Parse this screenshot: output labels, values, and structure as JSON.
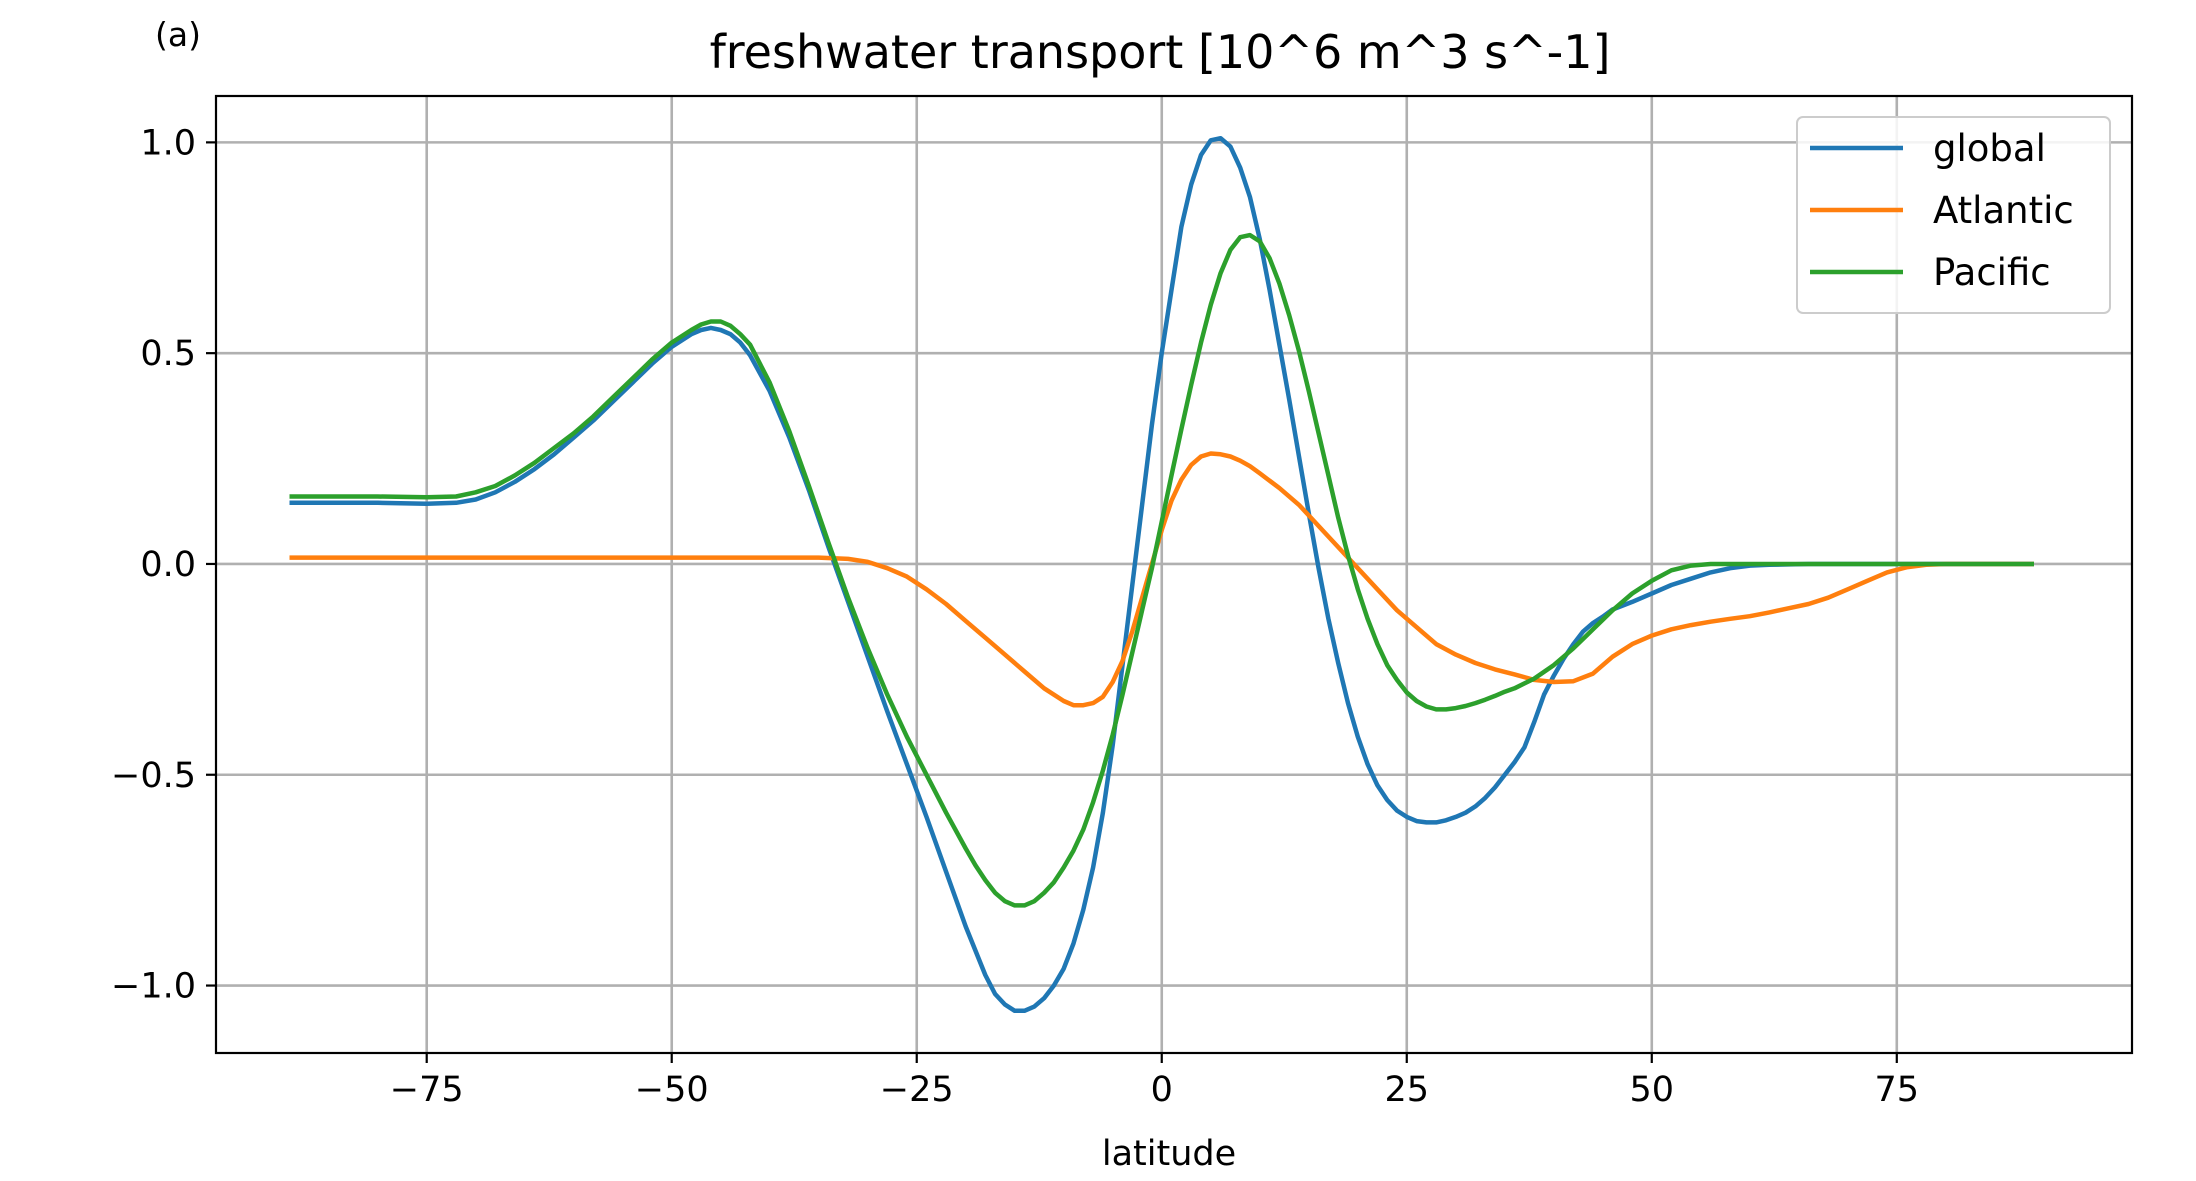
{
  "chart_data": {
    "type": "line",
    "panel_label": "(a)",
    "title": "freshwater transport [10^6 m^3 s^-1]",
    "xlabel": "latitude",
    "ylabel": "",
    "xlim": [
      -96.5,
      99
    ],
    "ylim": [
      -1.16,
      1.11
    ],
    "xticks": [
      -75,
      -50,
      -25,
      0,
      25,
      50,
      75
    ],
    "xtick_labels": [
      "−75",
      "−50",
      "−25",
      "0",
      "25",
      "50",
      "75"
    ],
    "yticks": [
      -1.0,
      -0.5,
      0.0,
      0.5,
      1.0
    ],
    "ytick_labels": [
      "−1.0",
      "−0.5",
      "0.0",
      "0.5",
      "1.0"
    ],
    "grid": true,
    "legend_position": "top-right",
    "series": [
      {
        "name": "global",
        "color": "#1f77b4",
        "x": [
          -89,
          -85,
          -80,
          -75,
          -72,
          -70,
          -68,
          -66,
          -64,
          -62,
          -60,
          -58,
          -56,
          -54,
          -52,
          -50,
          -48,
          -47,
          -46,
          -45,
          -44,
          -43,
          -42,
          -40,
          -38,
          -36,
          -34,
          -32,
          -30,
          -28,
          -26,
          -24,
          -22,
          -20,
          -18,
          -17,
          -16,
          -15,
          -14,
          -13,
          -12,
          -11,
          -10,
          -9,
          -8,
          -7,
          -6,
          -5,
          -4,
          -3,
          -2,
          -1,
          0,
          1,
          2,
          3,
          4,
          5,
          6,
          7,
          8,
          9,
          10,
          11,
          12,
          13,
          14,
          15,
          16,
          17,
          18,
          19,
          20,
          21,
          22,
          23,
          24,
          25,
          26,
          27,
          28,
          29,
          30,
          31,
          32,
          33,
          34,
          35,
          36,
          37,
          38,
          39,
          40,
          41,
          42,
          43,
          44,
          45,
          46,
          48,
          50,
          52,
          54,
          56,
          58,
          60,
          62,
          64,
          66,
          68,
          70,
          72,
          74,
          76,
          78,
          80,
          85,
          89
        ],
        "y": [
          0.145,
          0.145,
          0.145,
          0.143,
          0.145,
          0.153,
          0.17,
          0.195,
          0.225,
          0.26,
          0.3,
          0.34,
          0.385,
          0.43,
          0.475,
          0.515,
          0.545,
          0.555,
          0.56,
          0.555,
          0.545,
          0.525,
          0.495,
          0.41,
          0.3,
          0.175,
          0.04,
          -0.09,
          -0.22,
          -0.35,
          -0.475,
          -0.6,
          -0.73,
          -0.86,
          -0.975,
          -1.02,
          -1.045,
          -1.06,
          -1.06,
          -1.05,
          -1.03,
          -1.0,
          -0.96,
          -0.9,
          -0.82,
          -0.72,
          -0.59,
          -0.43,
          -0.24,
          -0.05,
          0.14,
          0.33,
          0.5,
          0.65,
          0.8,
          0.9,
          0.97,
          1.005,
          1.01,
          0.99,
          0.94,
          0.87,
          0.77,
          0.65,
          0.52,
          0.39,
          0.255,
          0.12,
          -0.01,
          -0.13,
          -0.235,
          -0.33,
          -0.41,
          -0.475,
          -0.525,
          -0.56,
          -0.585,
          -0.6,
          -0.61,
          -0.613,
          -0.613,
          -0.608,
          -0.6,
          -0.59,
          -0.575,
          -0.555,
          -0.53,
          -0.5,
          -0.47,
          -0.435,
          -0.375,
          -0.31,
          -0.265,
          -0.225,
          -0.19,
          -0.16,
          -0.14,
          -0.125,
          -0.108,
          -0.09,
          -0.07,
          -0.05,
          -0.035,
          -0.02,
          -0.01,
          -0.004,
          -0.002,
          -0.001,
          0.0,
          0.0,
          0.0,
          0.0,
          0.0,
          0.0,
          0.0,
          0.0,
          0.0,
          0.0
        ]
      },
      {
        "name": "Atlantic",
        "color": "#ff7f0e",
        "x": [
          -89,
          -80,
          -70,
          -60,
          -50,
          -40,
          -35,
          -32,
          -30,
          -28,
          -26,
          -24,
          -22,
          -20,
          -18,
          -16,
          -14,
          -12,
          -10,
          -9,
          -8,
          -7,
          -6,
          -5,
          -4,
          -3,
          -2,
          -1,
          0,
          1,
          2,
          3,
          4,
          5,
          6,
          7,
          8,
          9,
          10,
          12,
          14,
          16,
          18,
          20,
          22,
          24,
          26,
          28,
          30,
          32,
          34,
          36,
          38,
          40,
          42,
          44,
          46,
          48,
          50,
          52,
          54,
          56,
          58,
          60,
          62,
          64,
          66,
          68,
          70,
          72,
          74,
          76,
          78,
          80,
          85,
          89
        ],
        "y": [
          0.015,
          0.015,
          0.015,
          0.015,
          0.015,
          0.015,
          0.015,
          0.012,
          0.005,
          -0.01,
          -0.03,
          -0.06,
          -0.095,
          -0.135,
          -0.175,
          -0.215,
          -0.255,
          -0.295,
          -0.325,
          -0.335,
          -0.335,
          -0.33,
          -0.315,
          -0.28,
          -0.23,
          -0.16,
          -0.08,
          0.0,
          0.08,
          0.15,
          0.2,
          0.235,
          0.255,
          0.262,
          0.26,
          0.255,
          0.245,
          0.232,
          0.215,
          0.18,
          0.14,
          0.09,
          0.04,
          -0.01,
          -0.06,
          -0.11,
          -0.15,
          -0.19,
          -0.215,
          -0.235,
          -0.25,
          -0.262,
          -0.275,
          -0.28,
          -0.278,
          -0.26,
          -0.22,
          -0.19,
          -0.17,
          -0.155,
          -0.145,
          -0.137,
          -0.13,
          -0.124,
          -0.115,
          -0.105,
          -0.095,
          -0.08,
          -0.06,
          -0.04,
          -0.02,
          -0.008,
          -0.002,
          0.0,
          0.0,
          0.0
        ]
      },
      {
        "name": "Pacific",
        "color": "#2ca02c",
        "x": [
          -89,
          -85,
          -80,
          -75,
          -72,
          -70,
          -68,
          -66,
          -64,
          -62,
          -60,
          -58,
          -56,
          -54,
          -52,
          -50,
          -48,
          -47,
          -46,
          -45,
          -44,
          -43,
          -42,
          -40,
          -38,
          -36,
          -34,
          -32,
          -30,
          -28,
          -26,
          -24,
          -22,
          -20,
          -19,
          -18,
          -17,
          -16,
          -15,
          -14,
          -13,
          -12,
          -11,
          -10,
          -9,
          -8,
          -7,
          -6,
          -5,
          -4,
          -3,
          -2,
          -1,
          0,
          1,
          2,
          3,
          4,
          5,
          6,
          7,
          8,
          9,
          10,
          11,
          12,
          13,
          14,
          15,
          16,
          17,
          18,
          19,
          20,
          21,
          22,
          23,
          24,
          25,
          26,
          27,
          28,
          29,
          30,
          31,
          32,
          33,
          34,
          35,
          36,
          38,
          40,
          42,
          44,
          46,
          48,
          50,
          52,
          54,
          56,
          58,
          60,
          62,
          64,
          66,
          68,
          70,
          75,
          80,
          85,
          89
        ],
        "y": [
          0.16,
          0.16,
          0.16,
          0.158,
          0.16,
          0.17,
          0.185,
          0.21,
          0.24,
          0.275,
          0.31,
          0.35,
          0.395,
          0.44,
          0.485,
          0.525,
          0.555,
          0.568,
          0.575,
          0.575,
          0.565,
          0.545,
          0.52,
          0.43,
          0.315,
          0.185,
          0.05,
          -0.08,
          -0.2,
          -0.31,
          -0.41,
          -0.5,
          -0.59,
          -0.675,
          -0.715,
          -0.75,
          -0.78,
          -0.8,
          -0.81,
          -0.81,
          -0.8,
          -0.78,
          -0.755,
          -0.72,
          -0.68,
          -0.63,
          -0.565,
          -0.49,
          -0.405,
          -0.31,
          -0.21,
          -0.11,
          -0.01,
          0.1,
          0.21,
          0.32,
          0.425,
          0.525,
          0.615,
          0.69,
          0.745,
          0.775,
          0.78,
          0.765,
          0.725,
          0.665,
          0.59,
          0.505,
          0.41,
          0.31,
          0.21,
          0.11,
          0.02,
          -0.06,
          -0.13,
          -0.19,
          -0.24,
          -0.275,
          -0.305,
          -0.325,
          -0.338,
          -0.345,
          -0.345,
          -0.342,
          -0.337,
          -0.33,
          -0.322,
          -0.313,
          -0.303,
          -0.295,
          -0.272,
          -0.24,
          -0.2,
          -0.155,
          -0.11,
          -0.07,
          -0.04,
          -0.015,
          -0.004,
          0.0,
          0.0,
          0.0,
          0.0,
          0.0,
          0.0,
          0.0,
          0.0,
          0.0,
          0.0,
          0.0,
          0.0
        ]
      }
    ]
  }
}
